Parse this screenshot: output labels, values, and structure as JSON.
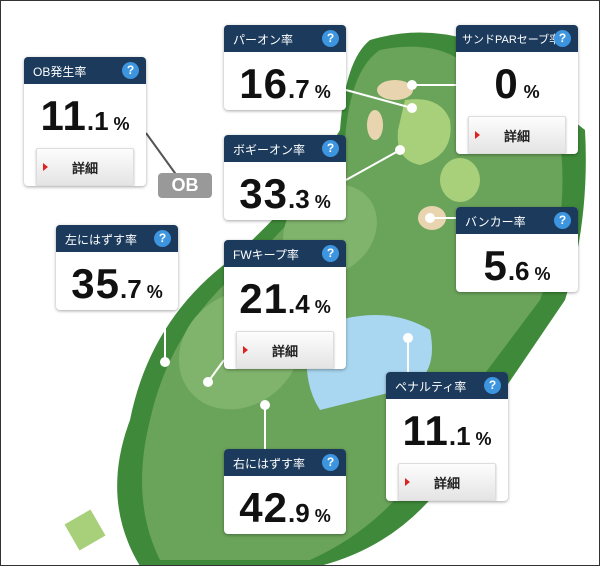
{
  "ob_label": "OB",
  "detail_label": "詳細",
  "help_icon": "?",
  "cards": {
    "ob": {
      "title": "OB発生率",
      "int": "11",
      "dec": ".1",
      "unit": "%"
    },
    "paron": {
      "title": "パーオン率",
      "int": "16",
      "dec": ".7",
      "unit": "%"
    },
    "sand": {
      "title": "サンドPARセーブ率",
      "int": "0",
      "dec": "",
      "unit": "%"
    },
    "bogey": {
      "title": "ボギーオン率",
      "int": "33",
      "dec": ".3",
      "unit": "%"
    },
    "left": {
      "title": "左にはずす率",
      "int": "35",
      "dec": ".7",
      "unit": "%"
    },
    "fw": {
      "title": "FWキープ率",
      "int": "21",
      "dec": ".4",
      "unit": "%"
    },
    "bunker": {
      "title": "バンカー率",
      "int": "5",
      "dec": ".6",
      "unit": "%"
    },
    "penalty": {
      "title": "ペナルティ率",
      "int": "11",
      "dec": ".1",
      "unit": "%"
    },
    "right": {
      "title": "右にはずす率",
      "int": "42",
      "dec": ".9",
      "unit": "%"
    }
  }
}
